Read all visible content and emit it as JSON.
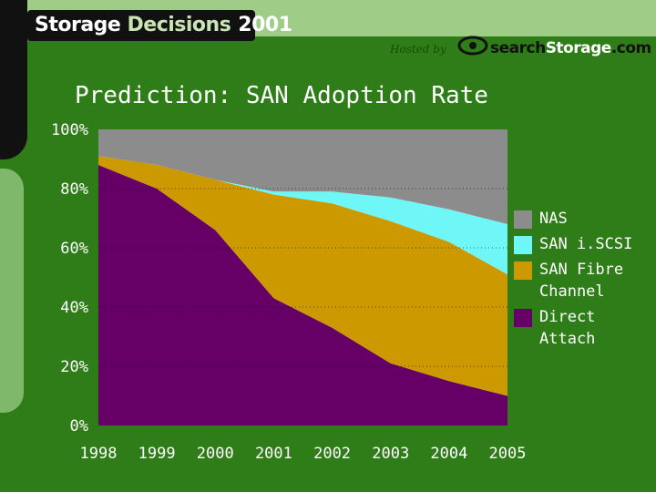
{
  "header": {
    "brand_word1": "Storage",
    "brand_word2": "Decisions",
    "brand_year": "2001",
    "hosted_by": "Hosted by",
    "host_part1": "search",
    "host_part2": "Storage",
    "host_part3": ".com"
  },
  "colors": {
    "background": "#2f7d18",
    "plot_background": "#ffffff",
    "nas": "#8c8c8c",
    "san_iscsi": "#6ff7f7",
    "san_fibre_channel": "#cc9900",
    "direct_attach": "#660066"
  },
  "chart_data": {
    "type": "area",
    "title": "Prediction: SAN Adoption Rate",
    "stacking": "cumulative percent (100% stacked)",
    "x": [
      "1998",
      "1999",
      "2000",
      "2001",
      "2002",
      "2003",
      "2004",
      "2005"
    ],
    "y_ticks": [
      "0%",
      "20%",
      "40%",
      "60%",
      "80%",
      "100%"
    ],
    "ylim": [
      0,
      100
    ],
    "grid": "dotted horizontal lines",
    "legend_position": "right",
    "series": [
      {
        "name": "Direct Attach",
        "values": [
          88,
          80,
          66,
          43,
          33,
          21,
          15,
          10
        ],
        "color": "#660066"
      },
      {
        "name": "SAN Fibre Channel",
        "values": [
          3,
          8,
          17,
          35,
          42,
          48,
          47,
          41
        ],
        "color": "#cc9900"
      },
      {
        "name": "SAN i.SCSI",
        "values": [
          0,
          0,
          0,
          1,
          4,
          8,
          11,
          17
        ],
        "color": "#6ff7f7"
      },
      {
        "name": "NAS",
        "values": [
          9,
          12,
          17,
          21,
          21,
          23,
          27,
          32
        ],
        "color": "#8c8c8c"
      }
    ],
    "legend": [
      {
        "label": "NAS",
        "color": "#8c8c8c"
      },
      {
        "label": "SAN i.SCSI",
        "color": "#6ff7f7"
      },
      {
        "label": "SAN Fibre Channel",
        "color": "#cc9900"
      },
      {
        "label": "Direct Attach",
        "color": "#660066"
      }
    ]
  }
}
